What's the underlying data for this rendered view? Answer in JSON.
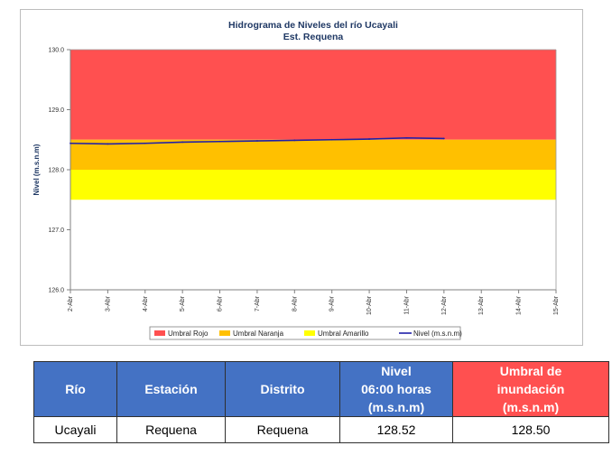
{
  "chart_data": {
    "type": "line",
    "title": "Hidrograma de Niveles del río Ucayali",
    "subtitle": "Est. Requena",
    "ylabel": "Nivel (m.s.n.m)",
    "xlabel": "",
    "ylim": [
      126.0,
      130.0
    ],
    "y_ticks": [
      "126.0",
      "127.0",
      "128.0",
      "129.0",
      "130.0"
    ],
    "x_ticks": [
      "2-Abr",
      "3-Abr",
      "4-Abr",
      "5-Abr",
      "6-Abr",
      "7-Abr",
      "8-Abr",
      "9-Abr",
      "10-Abr",
      "11-Abr",
      "12-Abr",
      "13-Abr",
      "14-Abr",
      "15-Abr"
    ],
    "bands": [
      {
        "name": "Umbral Rojo",
        "from": 128.5,
        "to": 130.0,
        "color": "#ff5050"
      },
      {
        "name": "Umbral Naranja",
        "from": 128.0,
        "to": 128.5,
        "color": "#ffc000"
      },
      {
        "name": "Umbral Amarillo",
        "from": 127.5,
        "to": 128.0,
        "color": "#ffff00"
      }
    ],
    "series": [
      {
        "name": "Nivel (m.s.n.m)",
        "color": "#1f1fa8",
        "x_index": [
          0,
          1,
          2,
          3,
          4,
          5,
          6,
          7,
          8,
          9,
          10
        ],
        "values": [
          128.44,
          128.43,
          128.44,
          128.46,
          128.47,
          128.48,
          128.49,
          128.5,
          128.51,
          128.53,
          128.52
        ]
      }
    ],
    "legend_position": "bottom",
    "grid": false
  },
  "table": {
    "headers": [
      "Río",
      "Estación",
      "Distrito",
      "Nivel\n06:00 horas\n(m.s.n.m)",
      "Umbral de\ninundación\n(m.s.n.m)"
    ],
    "row": [
      "Ucayali",
      "Requena",
      "Requena",
      "128.52",
      "128.50"
    ]
  }
}
